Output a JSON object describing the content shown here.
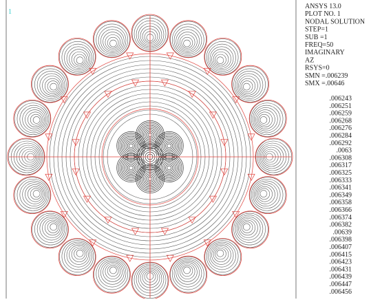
{
  "window_number": "1",
  "header": [
    "ANSYS 13.0",
    "PLOT NO.   1",
    "NODAL SOLUTION",
    "STEP=1",
    "SUB =1",
    "FREQ=50",
    "IMAGINARY",
    "AZ",
    "RSYS=0",
    "SMN =.006239",
    "SMX =.00646"
  ],
  "contour_levels": [
    ".006243",
    ".006251",
    ".006259",
    ".006268",
    ".006276",
    ".006284",
    ".006292",
    ".0063",
    ".006308",
    ".006317",
    ".006325",
    ".006333",
    ".006341",
    ".006349",
    ".006358",
    ".006366",
    ".006374",
    ".006382",
    ".00639",
    ".006398",
    ".006407",
    ".006415",
    ".006423",
    ".006431",
    ".006439",
    ".006447",
    ".006456"
  ]
}
